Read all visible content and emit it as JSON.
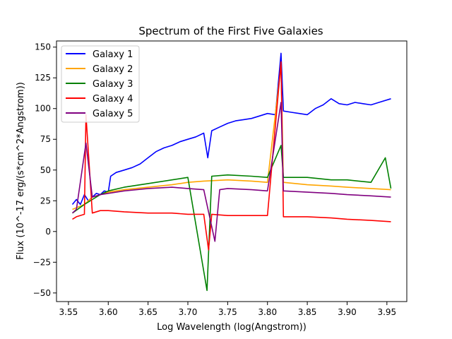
{
  "chart_data": {
    "type": "line",
    "title": "Spectrum of the First Five Galaxies",
    "xlabel": "Log Wavelength (log(Angstrom))",
    "ylabel": "Flux (10^-17 erg/(s*cm^2*Angstrom))",
    "xlim": [
      3.535,
      3.975
    ],
    "ylim": [
      -57,
      155
    ],
    "xticks": [
      3.55,
      3.6,
      3.65,
      3.7,
      3.75,
      3.8,
      3.85,
      3.9,
      3.95
    ],
    "xtick_labels": [
      "3.55",
      "3.60",
      "3.65",
      "3.70",
      "3.75",
      "3.80",
      "3.85",
      "3.90",
      "3.95"
    ],
    "yticks": [
      -50,
      -25,
      0,
      25,
      50,
      75,
      100,
      125,
      150
    ],
    "ytick_labels": [
      "−50",
      "−25",
      "0",
      "25",
      "50",
      "75",
      "100",
      "125",
      "150"
    ],
    "grid": false,
    "legend_position": "top-left",
    "series": [
      {
        "name": "Galaxy 1",
        "color": "#0000ff",
        "x": [
          3.555,
          3.56,
          3.565,
          3.57,
          3.575,
          3.58,
          3.585,
          3.59,
          3.595,
          3.6,
          3.603,
          3.61,
          3.62,
          3.63,
          3.64,
          3.65,
          3.66,
          3.67,
          3.68,
          3.69,
          3.7,
          3.71,
          3.72,
          3.725,
          3.73,
          3.74,
          3.75,
          3.76,
          3.77,
          3.78,
          3.79,
          3.8,
          3.81,
          3.817,
          3.82,
          3.83,
          3.84,
          3.85,
          3.86,
          3.87,
          3.88,
          3.89,
          3.9,
          3.91,
          3.92,
          3.93,
          3.94,
          3.955
        ],
        "y": [
          22,
          26,
          22,
          30,
          25,
          28,
          31,
          30,
          33,
          32,
          45,
          48,
          50,
          52,
          55,
          60,
          65,
          68,
          70,
          73,
          75,
          77,
          80,
          60,
          82,
          85,
          88,
          90,
          91,
          92,
          94,
          96,
          95,
          145,
          98,
          97,
          96,
          95,
          100,
          103,
          108,
          104,
          103,
          105,
          104,
          103,
          105,
          108
        ]
      },
      {
        "name": "Galaxy 2",
        "color": "#ffa500",
        "x": [
          3.555,
          3.57,
          3.58,
          3.59,
          3.6,
          3.62,
          3.65,
          3.68,
          3.7,
          3.72,
          3.75,
          3.78,
          3.8,
          3.817,
          3.82,
          3.85,
          3.88,
          3.9,
          3.93,
          3.955
        ],
        "y": [
          18,
          22,
          28,
          30,
          32,
          34,
          36,
          38,
          40,
          41,
          42,
          41,
          40,
          135,
          40,
          38,
          37,
          36,
          35,
          34
        ]
      },
      {
        "name": "Galaxy 3",
        "color": "#008000",
        "x": [
          3.555,
          3.57,
          3.58,
          3.59,
          3.6,
          3.62,
          3.65,
          3.68,
          3.7,
          3.724,
          3.73,
          3.75,
          3.78,
          3.8,
          3.817,
          3.82,
          3.85,
          3.88,
          3.9,
          3.93,
          3.948,
          3.955
        ],
        "y": [
          15,
          22,
          26,
          30,
          33,
          36,
          39,
          42,
          44,
          -48,
          45,
          46,
          45,
          44,
          70,
          44,
          44,
          42,
          42,
          40,
          60,
          35
        ]
      },
      {
        "name": "Galaxy 4",
        "color": "#ff0000",
        "x": [
          3.555,
          3.56,
          3.57,
          3.572,
          3.58,
          3.59,
          3.6,
          3.62,
          3.65,
          3.68,
          3.7,
          3.72,
          3.726,
          3.73,
          3.75,
          3.78,
          3.8,
          3.817,
          3.82,
          3.85,
          3.88,
          3.9,
          3.93,
          3.955
        ],
        "y": [
          10,
          12,
          14,
          95,
          15,
          17,
          17,
          16,
          15,
          15,
          14,
          14,
          -15,
          14,
          13,
          13,
          13,
          138,
          12,
          12,
          11,
          10,
          9,
          8
        ]
      },
      {
        "name": "Galaxy 5",
        "color": "#800080",
        "x": [
          3.555,
          3.56,
          3.572,
          3.58,
          3.59,
          3.6,
          3.62,
          3.65,
          3.68,
          3.7,
          3.72,
          3.734,
          3.74,
          3.75,
          3.78,
          3.8,
          3.817,
          3.82,
          3.85,
          3.88,
          3.9,
          3.93,
          3.955
        ],
        "y": [
          15,
          18,
          72,
          28,
          30,
          31,
          33,
          35,
          36,
          35,
          34,
          -8,
          34,
          35,
          34,
          33,
          105,
          33,
          32,
          31,
          30,
          29,
          28
        ]
      }
    ]
  }
}
